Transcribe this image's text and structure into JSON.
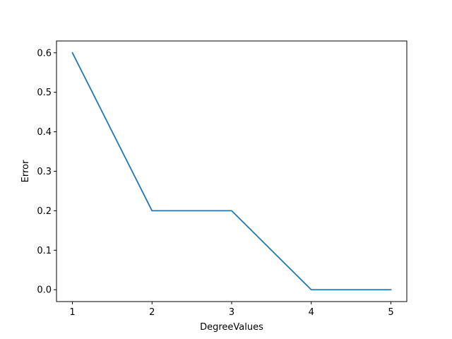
{
  "chart_data": {
    "type": "line",
    "title": "",
    "xlabel": "DegreeValues",
    "ylabel": "Error",
    "xlim": [
      0.8,
      5.2
    ],
    "ylim": [
      -0.03,
      0.63
    ],
    "xticks": [
      1,
      2,
      3,
      4,
      5
    ],
    "xtick_labels": [
      "1",
      "2",
      "3",
      "4",
      "5"
    ],
    "yticks": [
      0.0,
      0.1,
      0.2,
      0.3,
      0.4,
      0.5,
      0.6
    ],
    "ytick_labels": [
      "0.0",
      "0.1",
      "0.2",
      "0.3",
      "0.4",
      "0.5",
      "0.6"
    ],
    "grid": false,
    "series": [
      {
        "x": [
          1,
          2,
          3,
          4,
          5
        ],
        "values": [
          0.6,
          0.2,
          0.2,
          0.0,
          0.0
        ],
        "color": "#1f77b4"
      }
    ]
  }
}
